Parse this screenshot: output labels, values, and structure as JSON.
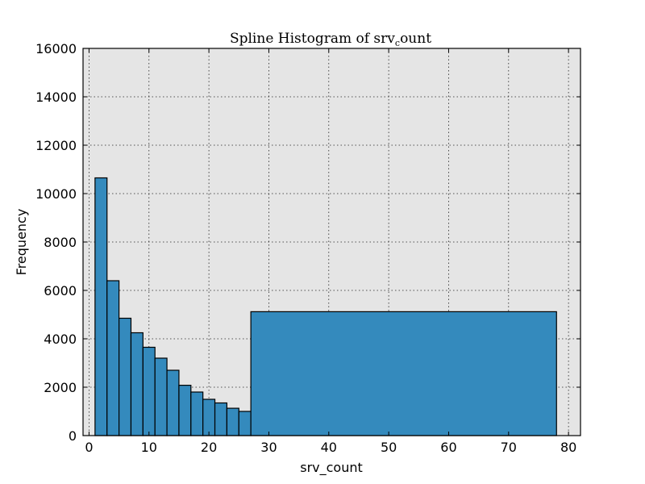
{
  "chart_data": {
    "type": "bar",
    "title_prefix": "Spline Histogram of srv",
    "title_subscript": "c",
    "title_suffix": "ount",
    "xlabel": "srv_count",
    "ylabel": "Frequency",
    "xlim": [
      -1,
      82
    ],
    "ylim": [
      0,
      16000
    ],
    "x_ticks": [
      0,
      10,
      20,
      30,
      40,
      50,
      60,
      70,
      80
    ],
    "y_ticks": [
      0,
      2000,
      4000,
      6000,
      8000,
      10000,
      12000,
      14000,
      16000
    ],
    "grid": true,
    "colors": {
      "bar": "#348abd",
      "plot_background": "#e5e5e5"
    },
    "bins": [
      {
        "start": 1,
        "end": 3,
        "value": 10650
      },
      {
        "start": 3,
        "end": 5,
        "value": 6400
      },
      {
        "start": 5,
        "end": 7,
        "value": 4850
      },
      {
        "start": 7,
        "end": 9,
        "value": 4250
      },
      {
        "start": 9,
        "end": 11,
        "value": 3650
      },
      {
        "start": 11,
        "end": 13,
        "value": 3200
      },
      {
        "start": 13,
        "end": 15,
        "value": 2700
      },
      {
        "start": 15,
        "end": 17,
        "value": 2080
      },
      {
        "start": 17,
        "end": 19,
        "value": 1800
      },
      {
        "start": 19,
        "end": 21,
        "value": 1500
      },
      {
        "start": 21,
        "end": 23,
        "value": 1350
      },
      {
        "start": 23,
        "end": 25,
        "value": 1130
      },
      {
        "start": 25,
        "end": 27,
        "value": 1000
      },
      {
        "start": 27,
        "end": 78,
        "value": 5120
      }
    ]
  }
}
